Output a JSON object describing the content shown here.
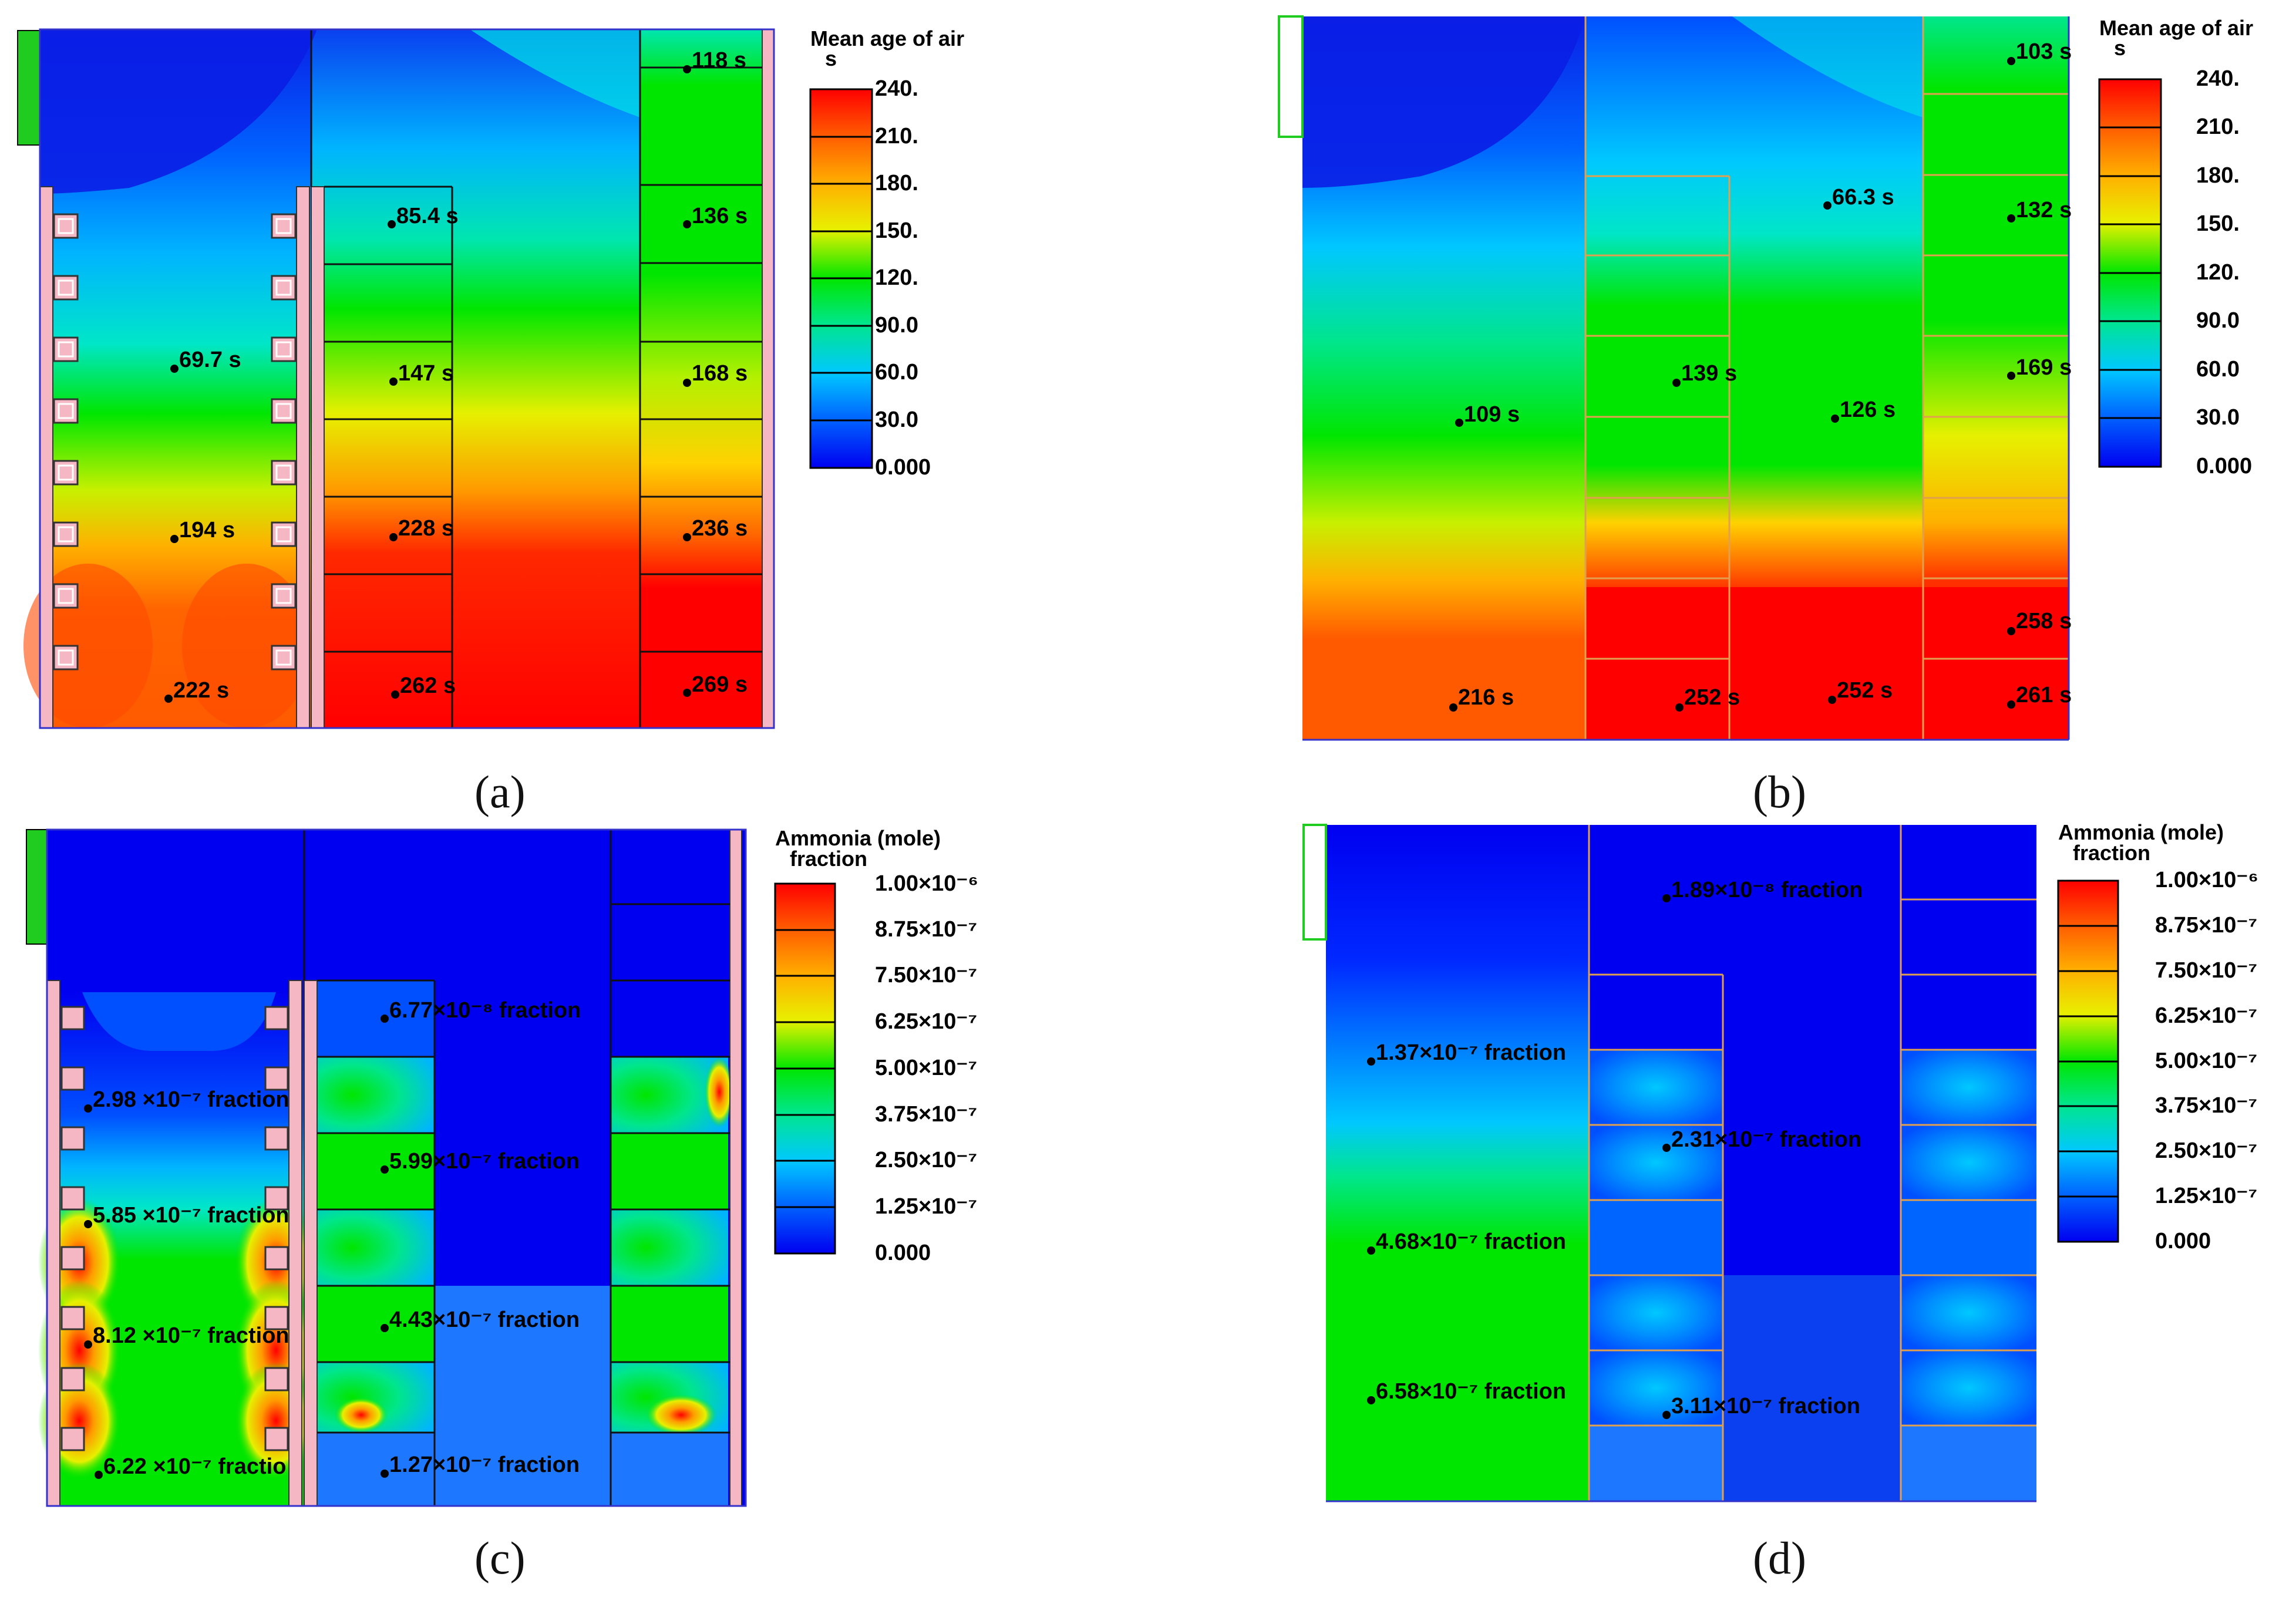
{
  "figure": {
    "panels": [
      {
        "id": "a",
        "caption": "(a)",
        "legend": {
          "title_line1": "Mean age of air",
          "title_line2": "s",
          "ticks": [
            "240.",
            "210.",
            "180.",
            "150.",
            "120.",
            "90.0",
            "60.0",
            "30.0",
            "0.000"
          ]
        },
        "probes": [
          "118 s",
          "85.4 s",
          "136 s",
          "69.7 s",
          "147 s",
          "168 s",
          "194 s",
          "228 s",
          "236 s",
          "222 s",
          "262 s",
          "269 s"
        ]
      },
      {
        "id": "b",
        "caption": "(b)",
        "legend": {
          "title_line1": "Mean age of air",
          "title_line2": "s",
          "ticks": [
            "240.",
            "210.",
            "180.",
            "150.",
            "120.",
            "90.0",
            "60.0",
            "30.0",
            "0.000"
          ]
        },
        "probes": [
          "103 s",
          "66.3 s",
          "132 s",
          "139 s",
          "169 s",
          "109 s",
          "126 s",
          "258 s",
          "216 s",
          "252 s",
          "252 s",
          "261 s"
        ]
      },
      {
        "id": "c",
        "caption": "(c)",
        "legend": {
          "title_line1": "Ammonia (mole)",
          "title_line2": "fraction",
          "ticks": [
            "1.00×10⁻⁶",
            "8.75×10⁻⁷",
            "7.50×10⁻⁷",
            "6.25×10⁻⁷",
            "5.00×10⁻⁷",
            "3.75×10⁻⁷",
            "2.50×10⁻⁷",
            "1.25×10⁻⁷",
            "0.000"
          ]
        },
        "probes": [
          "6.77×10⁻⁸ fraction",
          "2.98 ×10⁻⁷ fraction",
          "5.99×10⁻⁷ fraction",
          "5.85 ×10⁻⁷ fraction",
          "8.12 ×10⁻⁷ fraction",
          "4.43×10⁻⁷ fraction",
          "6.22 ×10⁻⁷ fractio",
          "1.27×10⁻⁷ fraction"
        ]
      },
      {
        "id": "d",
        "caption": "(d)",
        "legend": {
          "title_line1": "Ammonia (mole)",
          "title_line2": "fraction",
          "ticks": [
            "1.00×10⁻⁶",
            "8.75×10⁻⁷",
            "7.50×10⁻⁷",
            "6.25×10⁻⁷",
            "5.00×10⁻⁷",
            "3.75×10⁻⁷",
            "2.50×10⁻⁷",
            "1.25×10⁻⁷",
            "0.000"
          ]
        },
        "probes": [
          "1.89×10⁻⁸ fraction",
          "1.37×10⁻⁷ fraction",
          "2.31×10⁻⁷ fraction",
          "4.68×10⁻⁷ fraction",
          "6.58×10⁻⁷ fraction",
          "3.11×10⁻⁷ fraction"
        ]
      }
    ],
    "colors": {
      "scale": [
        "#ff0000",
        "#ff4a00",
        "#ff9a00",
        "#ffd200",
        "#e6f000",
        "#8cf000",
        "#00e600",
        "#00e68c",
        "#00e6e6",
        "#00b4ff",
        "#0064ff",
        "#0a1ee6",
        "#0000ff"
      ],
      "panel_border": "#3333cc",
      "stall": "#f4b7c3",
      "inlet": "#1fcc1f",
      "grid_b": "#e0a050"
    }
  }
}
